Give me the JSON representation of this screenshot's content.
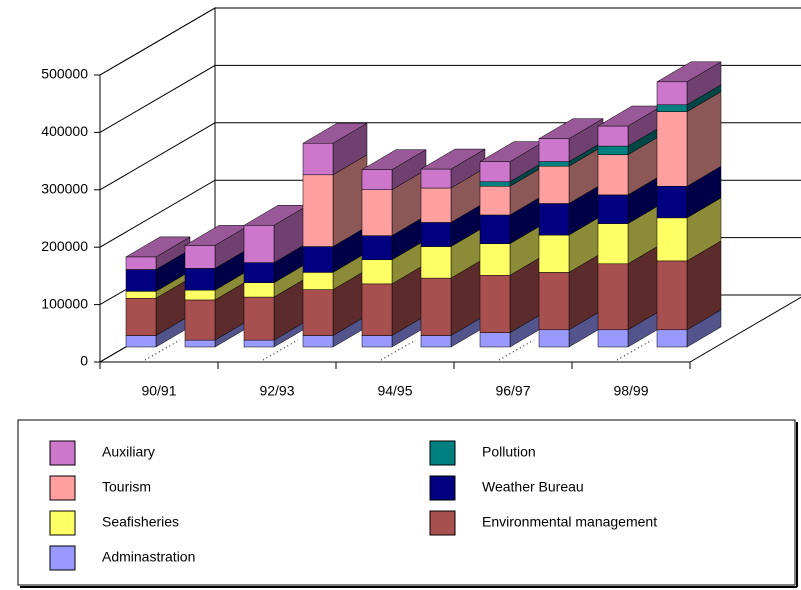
{
  "chart_data": {
    "type": "bar3d_stacked",
    "categories": [
      "90/91",
      null,
      "92/93",
      null,
      "94/95",
      null,
      "96/97",
      null,
      "98/99",
      null
    ],
    "series": [
      {
        "name": "Adminastration",
        "color": "#9999ff",
        "values": [
          20000,
          12000,
          12000,
          20000,
          20000,
          20000,
          25000,
          30000,
          30000,
          30000
        ]
      },
      {
        "name": "Environmental management",
        "color": "#a85050",
        "values": [
          65000,
          70000,
          75000,
          80000,
          90000,
          100000,
          100000,
          100000,
          115000,
          120000
        ]
      },
      {
        "name": "Seafisheries",
        "color": "#ffff66",
        "values": [
          12000,
          17000,
          25000,
          30000,
          42000,
          55000,
          55000,
          65000,
          70000,
          75000
        ]
      },
      {
        "name": "Weather Bureau",
        "color": "#000080",
        "values": [
          38000,
          38000,
          35000,
          45000,
          42000,
          42000,
          50000,
          55000,
          50000,
          55000
        ]
      },
      {
        "name": "Tourism",
        "color": "#ff9f9f",
        "values": [
          0,
          0,
          0,
          125000,
          80000,
          60000,
          50000,
          65000,
          70000,
          130000
        ]
      },
      {
        "name": "Pollution",
        "color": "#008080",
        "values": [
          0,
          0,
          0,
          0,
          0,
          0,
          8000,
          8000,
          15000,
          12000
        ]
      },
      {
        "name": "Auxiliary",
        "color": "#cc77cc",
        "values": [
          22000,
          40000,
          65000,
          55000,
          35000,
          33000,
          35000,
          40000,
          35000,
          40000
        ]
      }
    ],
    "ylim": [
      0,
      500000
    ],
    "yticks": [
      0,
      100000,
      200000,
      300000,
      400000,
      500000
    ],
    "grid": true,
    "legend": "bottom"
  }
}
